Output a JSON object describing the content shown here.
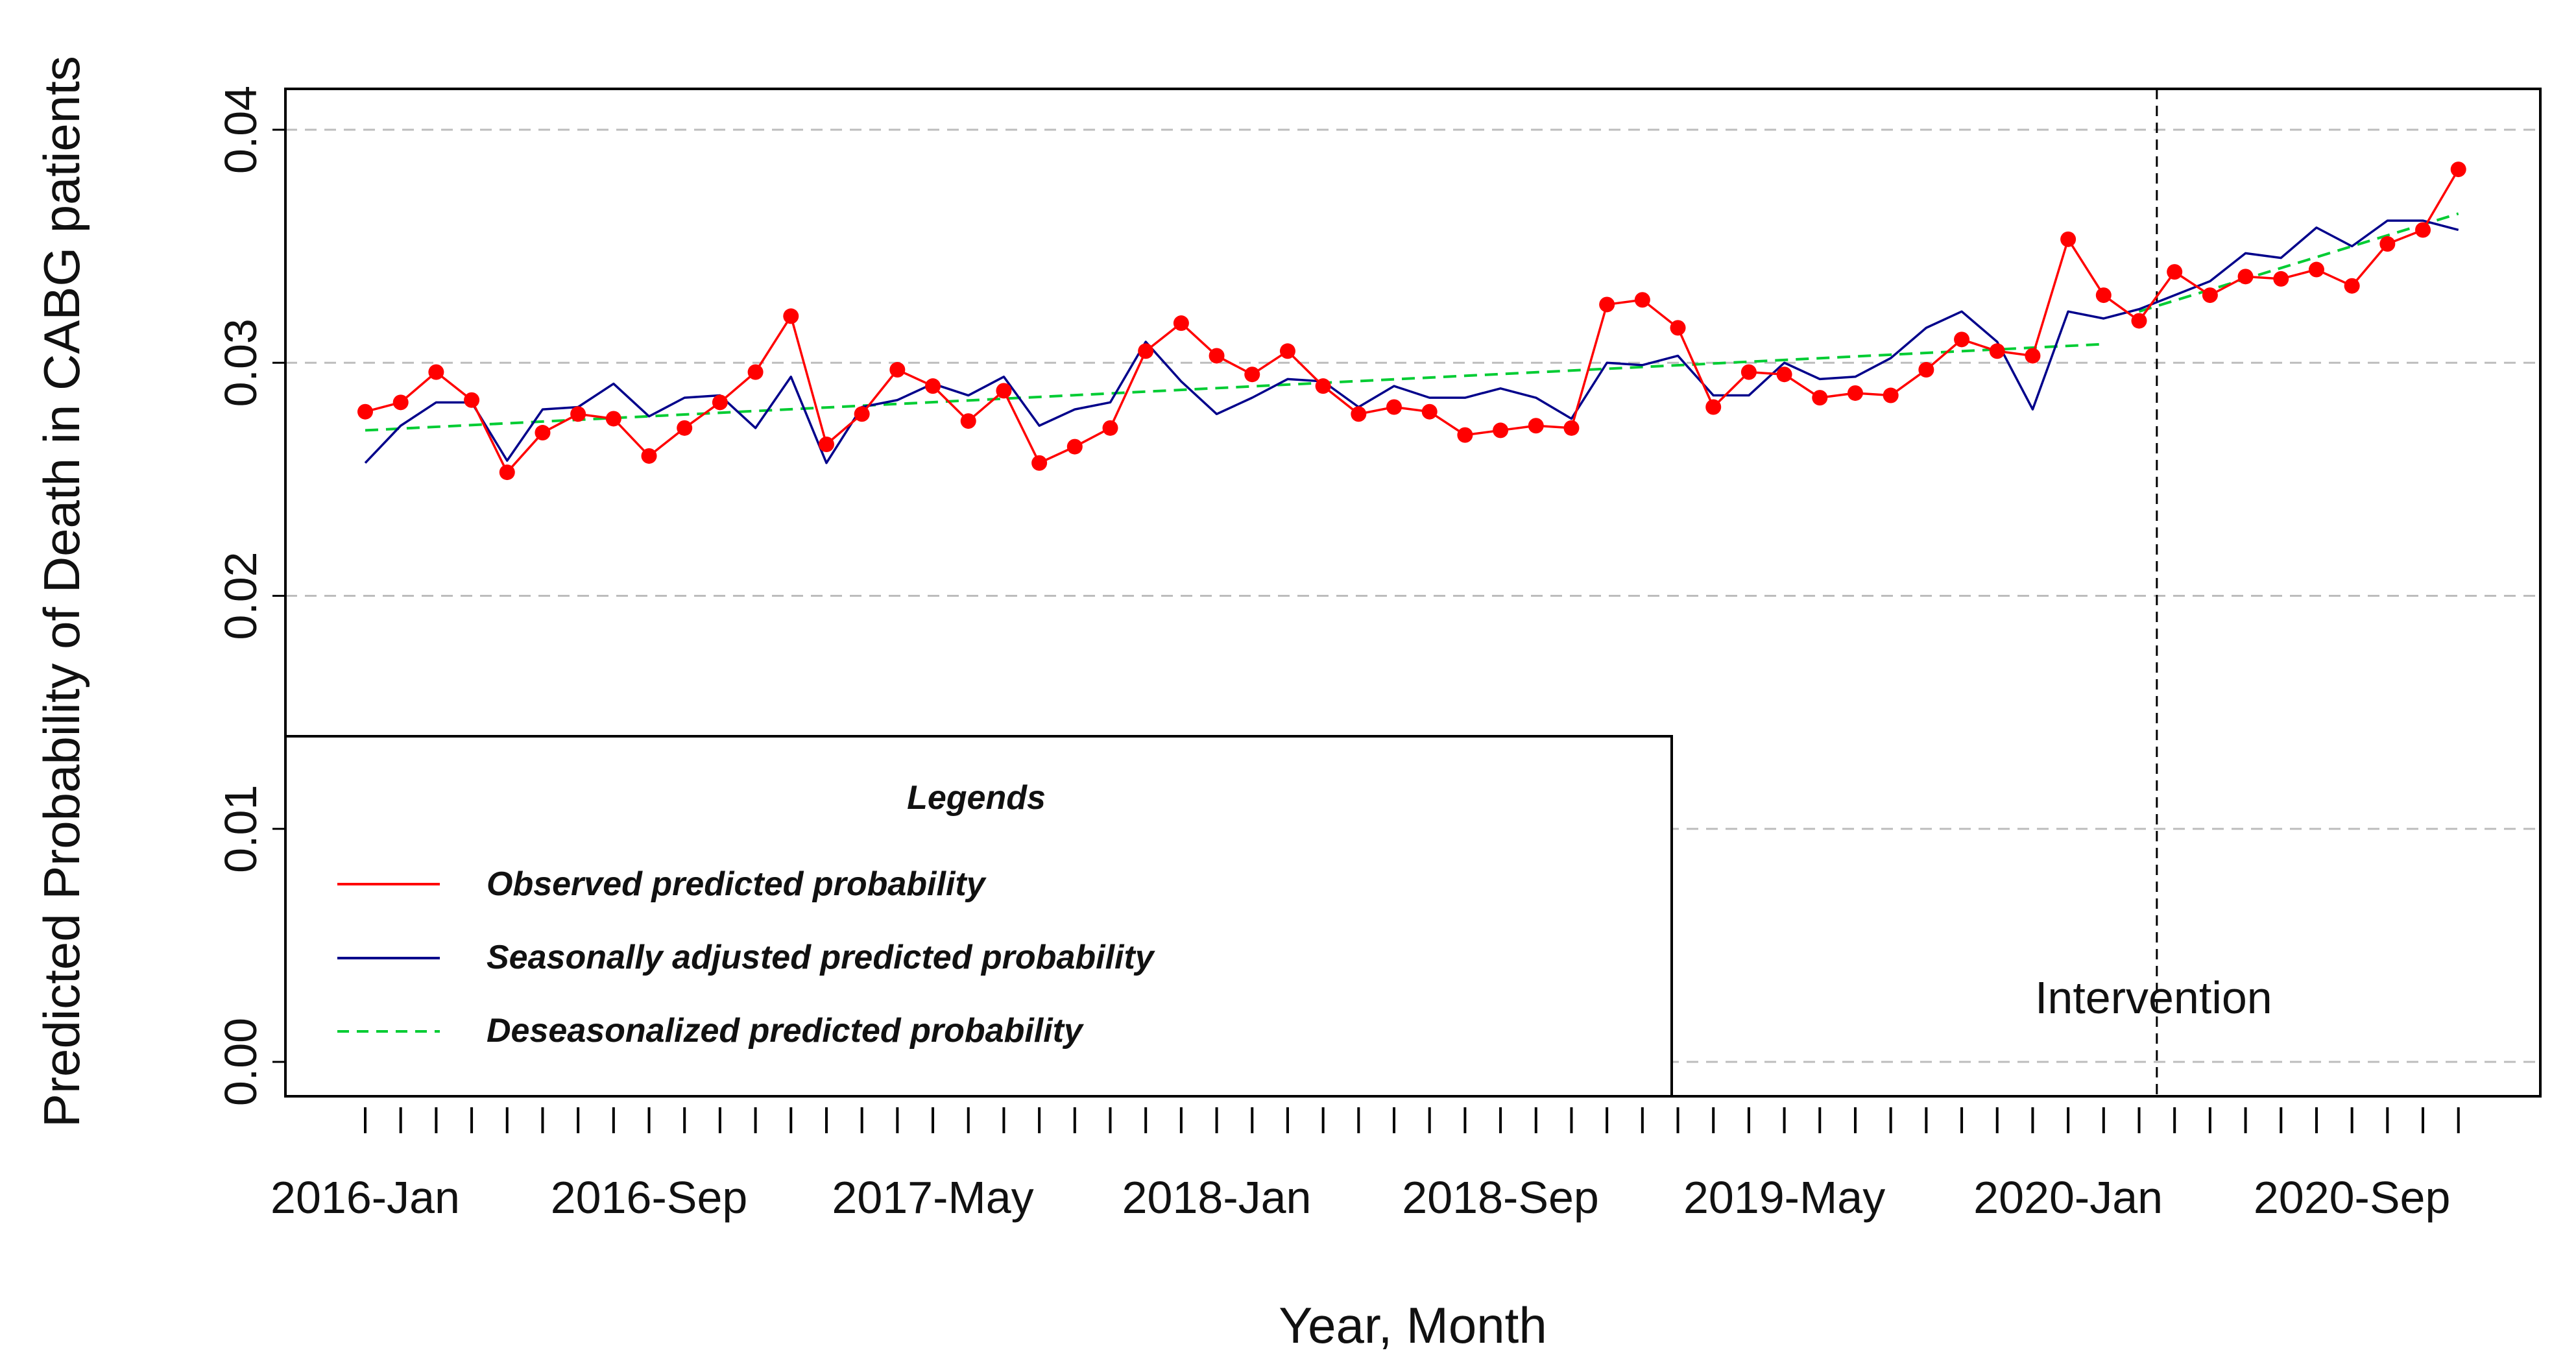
{
  "chart_data": {
    "type": "line",
    "xlabel": "Year, Month",
    "ylabel": "Predicted Probability of Death in CABG patients",
    "ylim": [
      0.0,
      0.04
    ],
    "yticks": [
      "0.00",
      "0.01",
      "0.02",
      "0.03",
      "0.04"
    ],
    "xtick_labels": [
      "2016-Jan",
      "2016-Sep",
      "2017-May",
      "2018-Jan",
      "2018-Sep",
      "2019-May",
      "2020-Jan",
      "2020-Sep"
    ],
    "grid": "horizontal dashed",
    "intervention": {
      "label": "Intervention",
      "month_index": 50.5
    },
    "legend": {
      "title": "Legends",
      "placement": "bottom-left",
      "items": [
        "Observed predicted probability",
        "Seasonally adjusted predicted probability",
        "Deseasonalized predicted probability"
      ]
    },
    "series": [
      {
        "name": "Observed predicted probability",
        "color": "#ff0000",
        "style": "line+points",
        "values": [
          0.0279,
          0.0283,
          0.0296,
          0.0284,
          0.0253,
          0.027,
          0.0278,
          0.0276,
          0.026,
          0.0272,
          0.0283,
          0.0296,
          0.032,
          0.0265,
          0.0278,
          0.0297,
          0.029,
          0.0275,
          0.0288,
          0.0257,
          0.0264,
          0.0272,
          0.0305,
          0.0317,
          0.0303,
          0.0295,
          0.0305,
          0.029,
          0.0278,
          0.0281,
          0.0279,
          0.0269,
          0.0271,
          0.0273,
          0.0272,
          0.0325,
          0.0327,
          0.0315,
          0.0281,
          0.0296,
          0.0295,
          0.0285,
          0.0287,
          0.0286,
          0.0297,
          0.031,
          0.0305,
          0.0303,
          0.0353,
          0.0329,
          0.0318,
          0.0339,
          0.0329,
          0.0337,
          0.0336,
          0.034,
          0.0333,
          0.0351,
          0.0357,
          0.0383
        ]
      },
      {
        "name": "Seasonally adjusted predicted probability",
        "color": "#00008b",
        "style": "line",
        "values": [
          0.0257,
          0.0273,
          0.0283,
          0.0283,
          0.0258,
          0.028,
          0.0281,
          0.0291,
          0.0277,
          0.0285,
          0.0286,
          0.0272,
          0.0294,
          0.0257,
          0.0281,
          0.0284,
          0.0291,
          0.0286,
          0.0294,
          0.0273,
          0.028,
          0.0283,
          0.0309,
          0.0292,
          0.0278,
          0.0285,
          0.0293,
          0.0292,
          0.0281,
          0.029,
          0.0285,
          0.0285,
          0.0289,
          0.0285,
          0.0276,
          0.03,
          0.0299,
          0.0303,
          0.0286,
          0.0286,
          0.03,
          0.0293,
          0.0294,
          0.0302,
          0.0315,
          0.0322,
          0.0309,
          0.028,
          0.0322,
          0.0319,
          0.0323,
          0.0329,
          0.0335,
          0.0347,
          0.0345,
          0.0358,
          0.035,
          0.0361,
          0.0361,
          0.0357
        ]
      },
      {
        "name": "Deseasonalized predicted probability",
        "color": "#00cc33",
        "style": "dashed",
        "segments": [
          {
            "start": 0,
            "end": 49,
            "from": 0.0271,
            "to": 0.0308
          },
          {
            "start": 50,
            "end": 59,
            "from": 0.0322,
            "to": 0.0364
          }
        ]
      }
    ]
  }
}
